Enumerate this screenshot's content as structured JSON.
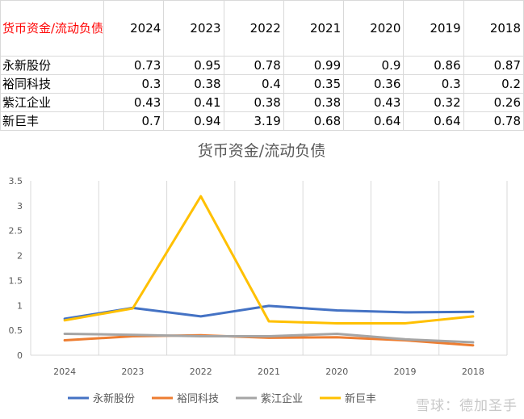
{
  "table": {
    "corner_label": "货币资金/流动负债",
    "years": [
      "2024",
      "2023",
      "2022",
      "2021",
      "2020",
      "2019",
      "2018"
    ],
    "rows": [
      {
        "name": "永新股份",
        "values": [
          "0.73",
          "0.95",
          "0.78",
          "0.99",
          "0.9",
          "0.86",
          "0.87"
        ]
      },
      {
        "name": "裕同科技",
        "values": [
          "0.3",
          "0.38",
          "0.4",
          "0.35",
          "0.36",
          "0.3",
          "0.2"
        ]
      },
      {
        "name": "紫江企业",
        "values": [
          "0.43",
          "0.41",
          "0.38",
          "0.38",
          "0.43",
          "0.32",
          "0.26"
        ]
      },
      {
        "name": "新巨丰",
        "values": [
          "0.7",
          "0.94",
          "3.19",
          "0.68",
          "0.64",
          "0.64",
          "0.78"
        ]
      }
    ]
  },
  "chart_data": {
    "type": "line",
    "title": "货币资金/流动负债",
    "xlabel": "",
    "ylabel": "",
    "categories": [
      "2024",
      "2023",
      "2022",
      "2021",
      "2020",
      "2019",
      "2018"
    ],
    "ylim": [
      0,
      3.5
    ],
    "yticks": [
      "0",
      "0.5",
      "1",
      "1.5",
      "2",
      "2.5",
      "3",
      "3.5"
    ],
    "grid": "vertical-only",
    "legend_position": "bottom",
    "series": [
      {
        "name": "永新股份",
        "color": "#4472c4",
        "values": [
          0.73,
          0.95,
          0.78,
          0.99,
          0.9,
          0.86,
          0.87
        ]
      },
      {
        "name": "裕同科技",
        "color": "#ed7d31",
        "values": [
          0.3,
          0.38,
          0.4,
          0.35,
          0.36,
          0.3,
          0.2
        ]
      },
      {
        "name": "紫江企业",
        "color": "#a5a5a5",
        "values": [
          0.43,
          0.41,
          0.38,
          0.38,
          0.43,
          0.32,
          0.26
        ]
      },
      {
        "name": "新巨丰",
        "color": "#ffc000",
        "values": [
          0.7,
          0.94,
          3.19,
          0.68,
          0.64,
          0.64,
          0.78
        ]
      }
    ]
  },
  "watermark": "雪球：德加圣手"
}
